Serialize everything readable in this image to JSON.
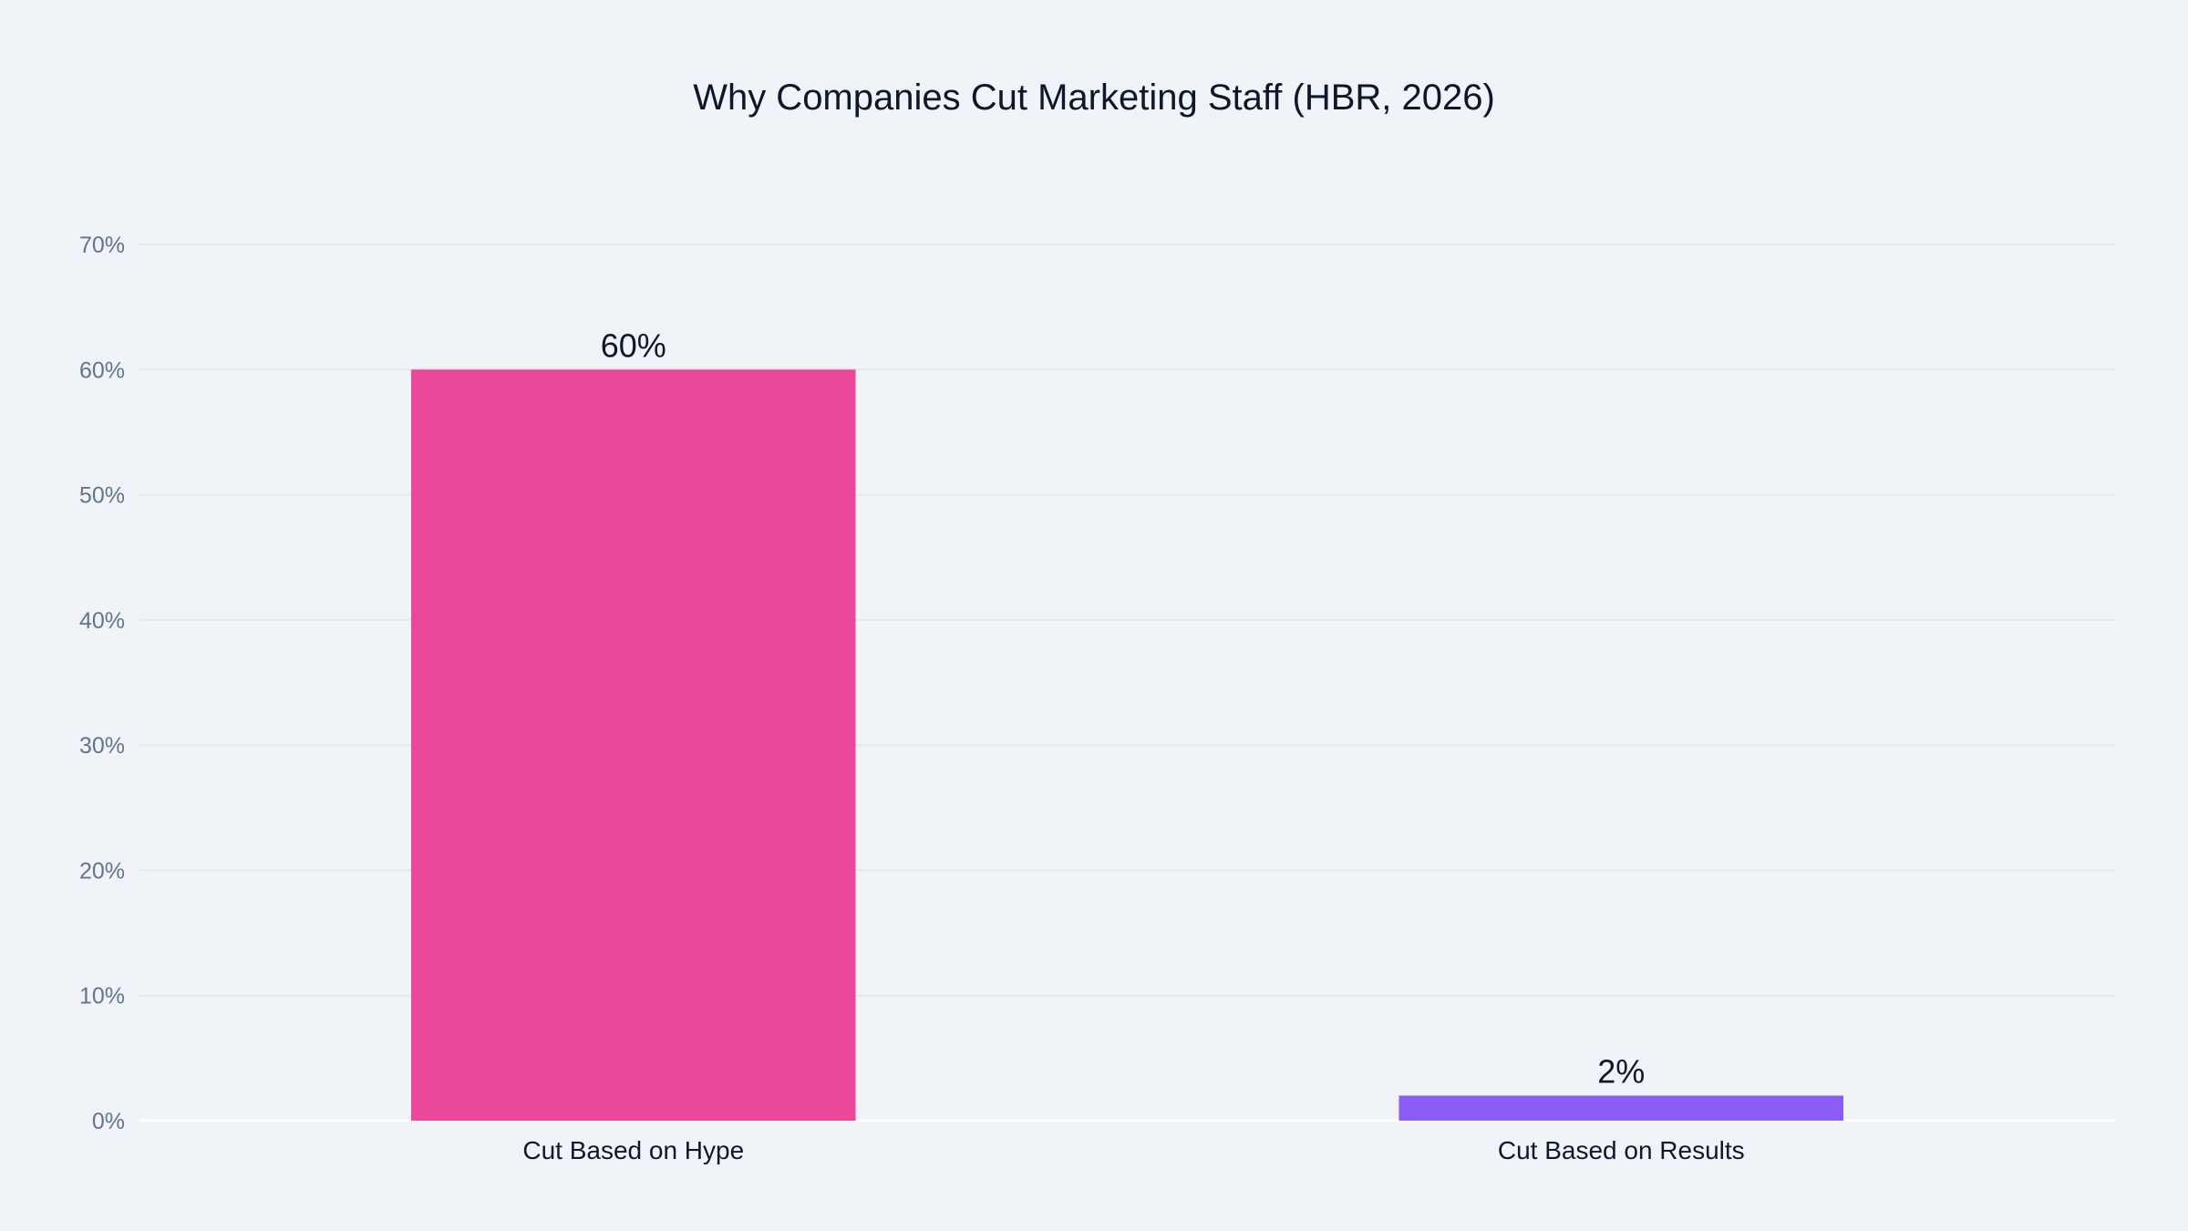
{
  "chart_data": {
    "type": "bar",
    "title": "Why Companies Cut Marketing Staff (HBR, 2026)",
    "xlabel": "",
    "ylabel": "",
    "categories": [
      "Cut Based on Hype",
      "Cut Based on Results"
    ],
    "values": [
      60,
      2
    ],
    "data_labels": [
      "60%",
      "2%"
    ],
    "colors": [
      "#EC4899",
      "#8B5CF6"
    ],
    "ylim": [
      0,
      70
    ],
    "yticks": [
      0,
      10,
      20,
      30,
      40,
      50,
      60,
      70
    ],
    "ytick_labels": [
      "0%",
      "10%",
      "20%",
      "30%",
      "40%",
      "50%",
      "60%",
      "70%"
    ],
    "grid": true,
    "legend": "none"
  }
}
